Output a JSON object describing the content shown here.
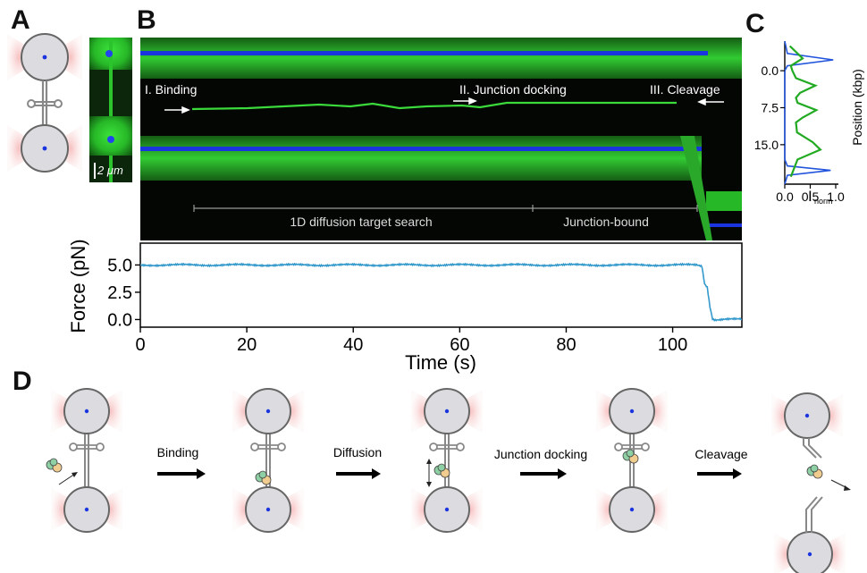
{
  "panels": {
    "A": {
      "letter": "A",
      "scale_bar": "2 μm"
    },
    "B": {
      "letter": "B",
      "kymo_labels": {
        "binding": "I. Binding",
        "junction_docking": "II. Junction docking",
        "cleavage": "III. Cleavage",
        "diffusion_phase": "1D diffusion target search",
        "bound_phase": "Junction-bound"
      }
    },
    "C": {
      "letter": "C",
      "xlabel_main": "I",
      "xlabel_sub": "norm",
      "ylabel": "Position (kbp)"
    },
    "D": {
      "letter": "D",
      "steps": [
        "Binding",
        "Diffusion",
        "Junction docking",
        "Cleavage"
      ]
    }
  },
  "colors": {
    "blue_channel": "#1a35e0",
    "green_channel": "#2fd52f",
    "force_trace": "#3399cc",
    "profile_green": "#22aa22",
    "profile_blue": "#2255dd",
    "bead": "#d9d9de",
    "trap_glow": "#f4b8b8"
  },
  "chart_data": [
    {
      "type": "line",
      "xlabel": "Time (s)",
      "ylabel": "Force (pN)",
      "xlim": [
        0,
        113
      ],
      "ylim": [
        -0.7,
        7.0
      ],
      "x_ticks": [
        "0",
        "20",
        "40",
        "60",
        "80",
        "100"
      ],
      "y_ticks": [
        "5.0",
        "2.5",
        "0.0"
      ],
      "series": [
        {
          "x": [
            0,
            20,
            40,
            60,
            80,
            100,
            104.5,
            105.5,
            106,
            106.5,
            107,
            107.5,
            108,
            110,
            113
          ],
          "y": [
            5.0,
            5.0,
            5.0,
            5.0,
            5.0,
            5.0,
            5.0,
            4.9,
            3.3,
            3.0,
            1.2,
            0.1,
            0.0,
            0.05,
            0.0
          ]
        }
      ]
    },
    {
      "type": "line",
      "xlabel": "I norm",
      "ylabel": "Position (kbp)",
      "xlim": [
        0,
        1.0
      ],
      "ylim": [
        23,
        -6
      ],
      "x_ticks": [
        "0.0",
        "0.5",
        "1.0"
      ],
      "y_ticks": [
        "0.0",
        "7.5",
        "15.0"
      ],
      "series": [
        {
          "x": [
            0.1,
            0.35,
            0.12,
            0.15,
            0.22,
            0.6,
            0.3,
            0.22,
            0.25,
            0.62,
            0.35,
            0.22,
            0.24,
            0.55,
            0.7,
            0.25,
            0.12
          ],
          "y": [
            -5,
            -2.5,
            -1,
            0,
            1.5,
            3.0,
            4.5,
            5.5,
            6.5,
            8.0,
            9.5,
            10.5,
            12.5,
            14.5,
            16.0,
            18.0,
            21.5
          ]
        },
        {
          "x": [
            0,
            0.05,
            0.95,
            0.05,
            0,
            0,
            0.05,
            0.9,
            0.05,
            0
          ],
          "y": [
            -6,
            -3.5,
            -2.2,
            -1,
            0,
            18,
            19.3,
            20.2,
            21.2,
            23
          ]
        }
      ]
    }
  ]
}
